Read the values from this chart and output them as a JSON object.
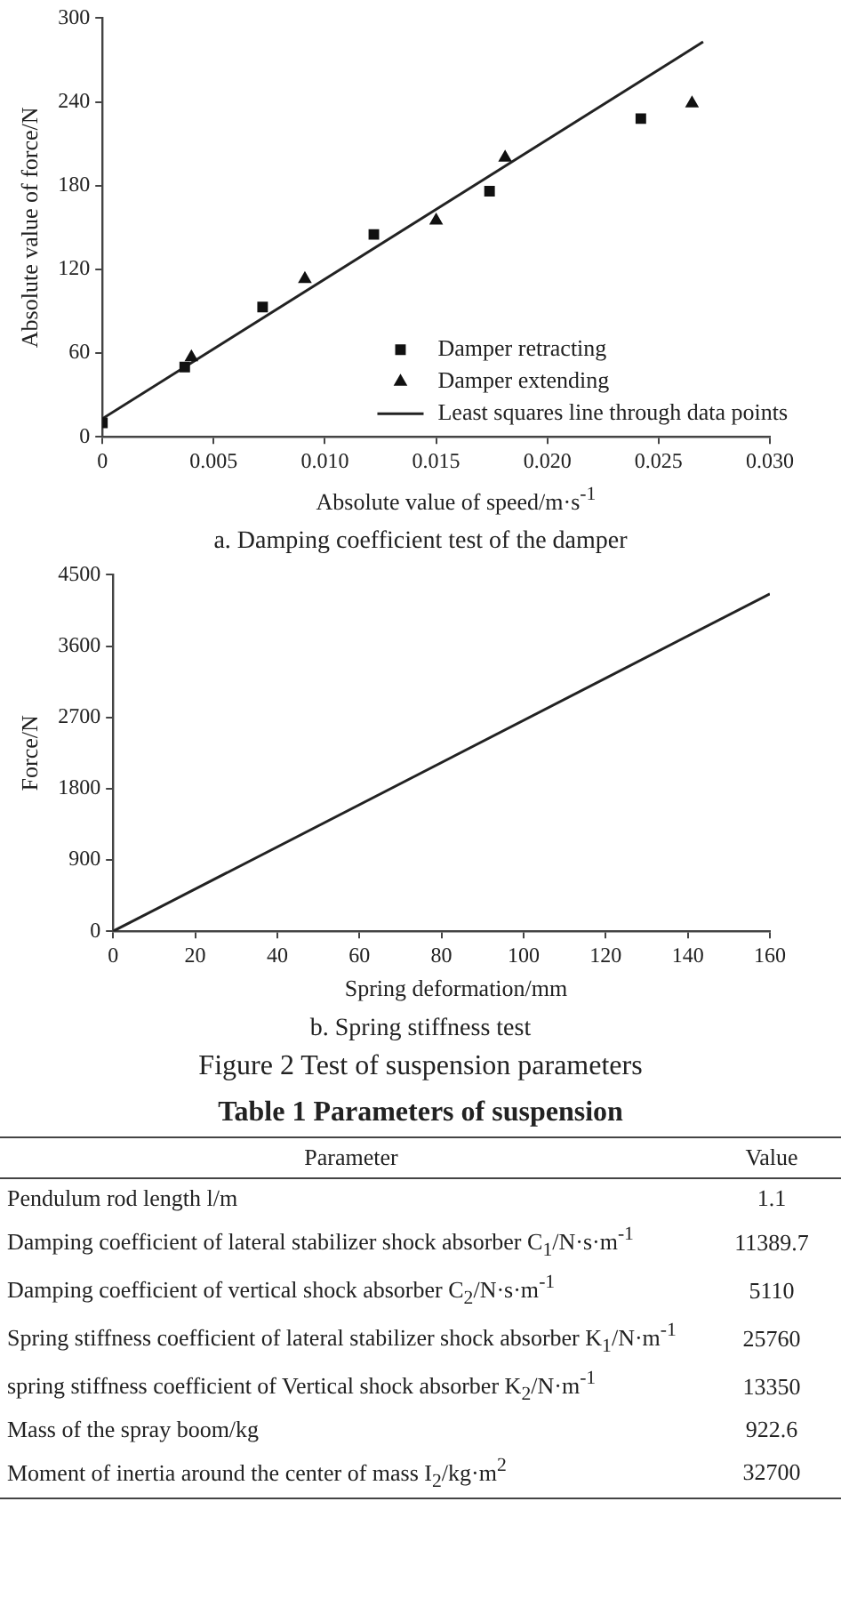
{
  "chart_data": [
    {
      "type": "scatter",
      "title": "a. Damping coefficient test of the damper",
      "xlabel": "Absolute value of speed/m·s$^{-1}$",
      "ylabel": "Absolute value of force/N",
      "xlim": [
        0,
        0.03
      ],
      "ylim": [
        0,
        300
      ],
      "xticks": [
        0,
        {
          "value": 0.005,
          "label": "0.005"
        },
        {
          "value": 0.01,
          "label": "0.010"
        },
        {
          "value": 0.015,
          "label": "0.015"
        },
        {
          "value": 0.02,
          "label": "0.020"
        },
        {
          "value": 0.025,
          "label": "0.025"
        },
        {
          "value": 0.03,
          "label": "0.030"
        }
      ],
      "yticks": [
        0,
        60,
        120,
        180,
        240,
        300
      ],
      "grid": false,
      "legend": "bottom right",
      "series": [
        {
          "name": "Damper retracting",
          "type": "scatter",
          "marker": "square",
          "color": "#111111",
          "x": [
            0,
            0.0037,
            0.0072,
            0.0122,
            0.0174,
            0.0242
          ],
          "values": [
            10,
            50,
            93,
            145,
            176,
            228
          ]
        },
        {
          "name": "Damper extending",
          "type": "scatter",
          "marker": "triangle",
          "color": "#111111",
          "x": [
            0.004,
            0.0091,
            0.015,
            0.0181,
            0.0265
          ],
          "values": [
            57,
            113,
            155,
            200,
            239
          ]
        },
        {
          "name": "Least squares line through data points",
          "type": "line",
          "line_style": "solid",
          "color": "#222222",
          "x": [
            0,
            0.027
          ],
          "values": [
            13,
            283
          ]
        }
      ]
    },
    {
      "type": "line",
      "title": "b. Spring stiffness test",
      "xlabel": "Spring deformation/mm",
      "ylabel": "Force/N",
      "xlim": [
        0,
        160
      ],
      "ylim": [
        0,
        4500
      ],
      "xticks": [
        0,
        20,
        40,
        60,
        80,
        100,
        120,
        140,
        160
      ],
      "yticks": [
        0,
        900,
        1800,
        2700,
        3600,
        4500
      ],
      "grid": false,
      "legend": false,
      "annotations": [
        "Figure 2    Test of suspension parameters"
      ],
      "series": [
        {
          "color": "#222222",
          "x": [
            0,
            160
          ],
          "values": [
            0,
            4260
          ]
        }
      ]
    },
    {
      "type": "other",
      "title": "Table 1    Parameters of suspension",
      "annotations": [
        "Parameter",
        "Value",
        "Pendulum rod length l/m",
        "1.1",
        "Damping coefficient of lateral stabilizer shock absorber C$_{1}$/N·s·m$^{-1}$",
        "11389.7",
        "Damping coefficient of vertical shock absorber C$_{2}$/N·s·m$^{-1}$",
        "5110",
        "Spring stiffness coefficient of lateral stabilizer shock absorber K$_{1}$/N·m$^{-1}$",
        "25760",
        "spring stiffness coefficient of Vertical shock absorber K$_{2}$/N·m$^{-1}$",
        "13350",
        "Mass of the spray boom/kg",
        "922.6",
        "Moment of inertia around the center of mass I$_{2}$/kg·m$^{2}$",
        "32700"
      ]
    }
  ]
}
